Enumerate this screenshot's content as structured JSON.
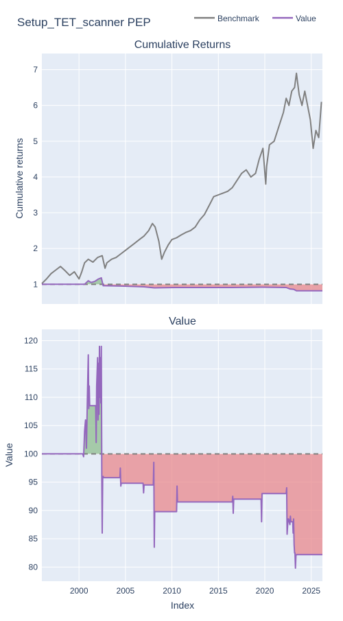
{
  "title": "Setup_TET_scanner PEP",
  "colors": {
    "benchmark": "#7f7f7f",
    "value": "#9467bd",
    "gain_fill": "#8fbf8f",
    "loss_fill": "#e8888c",
    "plot_bg": "#e5ecf6",
    "grid": "#ffffff"
  },
  "legend": {
    "placement": "top-right",
    "items": [
      {
        "label": "Benchmark",
        "color": "#7f7f7f"
      },
      {
        "label": "Value",
        "color": "#9467bd"
      }
    ]
  },
  "chart_data": [
    {
      "type": "line",
      "title": "Cumulative Returns",
      "xlabel": "",
      "ylabel": "Cumulative returns",
      "xlim": [
        1996.0,
        2026.2
      ],
      "ylim": [
        0.45,
        7.45
      ],
      "yticks": [
        1,
        2,
        3,
        4,
        5,
        6,
        7
      ],
      "baseline": 1,
      "grid": true,
      "series": [
        {
          "name": "Benchmark",
          "x": [
            1996.0,
            1996.5,
            1997.0,
            1997.5,
            1998.0,
            1998.5,
            1999.0,
            1999.5,
            2000.0,
            2000.3,
            2000.6,
            2001.0,
            2001.5,
            2002.0,
            2002.5,
            2002.8,
            2003.0,
            2003.5,
            2004.0,
            2004.5,
            2005.0,
            2005.5,
            2006.0,
            2006.5,
            2007.0,
            2007.5,
            2007.9,
            2008.2,
            2008.6,
            2008.9,
            2009.2,
            2009.6,
            2010.0,
            2010.5,
            2011.0,
            2011.5,
            2012.0,
            2012.5,
            2013.0,
            2013.5,
            2014.0,
            2014.5,
            2015.0,
            2015.5,
            2016.0,
            2016.5,
            2017.0,
            2017.5,
            2018.0,
            2018.5,
            2019.0,
            2019.4,
            2019.8,
            2020.1,
            2020.2,
            2020.5,
            2021.0,
            2021.5,
            2022.0,
            2022.3,
            2022.6,
            2022.9,
            2023.2,
            2023.4,
            2023.7,
            2024.0,
            2024.3,
            2024.6,
            2024.9,
            2025.2,
            2025.5,
            2025.8,
            2026.1
          ],
          "values": [
            1.02,
            1.15,
            1.3,
            1.4,
            1.5,
            1.38,
            1.25,
            1.35,
            1.15,
            1.35,
            1.6,
            1.7,
            1.62,
            1.75,
            1.8,
            1.45,
            1.6,
            1.7,
            1.75,
            1.85,
            1.95,
            2.05,
            2.15,
            2.25,
            2.35,
            2.5,
            2.7,
            2.6,
            2.2,
            1.7,
            1.9,
            2.1,
            2.25,
            2.3,
            2.38,
            2.45,
            2.5,
            2.6,
            2.8,
            2.95,
            3.2,
            3.45,
            3.5,
            3.55,
            3.6,
            3.7,
            3.9,
            4.1,
            4.2,
            4.0,
            4.1,
            4.5,
            4.8,
            3.8,
            4.3,
            4.9,
            5.0,
            5.4,
            5.8,
            6.2,
            6.0,
            6.4,
            6.5,
            6.9,
            6.3,
            6.0,
            6.4,
            6.0,
            5.6,
            4.8,
            5.3,
            5.1,
            6.1
          ]
        },
        {
          "name": "Value",
          "x": [
            1996.0,
            2000.6,
            2001.0,
            2001.3,
            2001.7,
            2002.1,
            2002.4,
            2002.6,
            2002.7,
            2004.5,
            2007.0,
            2008.1,
            2010.5,
            2016.5,
            2019.7,
            2022.3,
            2022.7,
            2023.1,
            2023.4,
            2026.2
          ],
          "values": [
            1.0,
            1.0,
            1.1,
            1.05,
            1.08,
            1.15,
            1.18,
            0.96,
            0.96,
            0.95,
            0.93,
            0.9,
            0.91,
            0.91,
            0.92,
            0.91,
            0.87,
            0.86,
            0.82,
            0.82
          ]
        }
      ]
    },
    {
      "type": "line",
      "title": "Value",
      "xlabel": "Index",
      "ylabel": "Value",
      "xlim": [
        1996.0,
        2026.2
      ],
      "ylim": [
        77.5,
        122
      ],
      "yticks": [
        80,
        85,
        90,
        95,
        100,
        105,
        110,
        115,
        120
      ],
      "xticks": [
        2000,
        2005,
        2010,
        2015,
        2020,
        2025
      ],
      "baseline": 100,
      "grid": true,
      "series": [
        {
          "name": "Value",
          "x": [
            1996.0,
            2000.4,
            2000.5,
            2000.6,
            2000.7,
            2000.8,
            2000.9,
            2001.0,
            2001.05,
            2001.1,
            2001.15,
            2001.25,
            2001.3,
            2001.4,
            2001.8,
            2001.85,
            2001.9,
            2002.0,
            2002.05,
            2002.1,
            2002.15,
            2002.2,
            2002.25,
            2002.3,
            2002.35,
            2002.4,
            2002.45,
            2002.5,
            2002.55,
            2002.6,
            2002.65,
            2002.7,
            2004.4,
            2004.45,
            2004.5,
            2004.55,
            2006.9,
            2006.95,
            2007.0,
            2007.05,
            2008.0,
            2008.05,
            2008.1,
            2008.15,
            2008.2,
            2008.25,
            2010.5,
            2010.55,
            2010.6,
            2010.65,
            2016.5,
            2016.55,
            2016.6,
            2016.65,
            2019.6,
            2019.65,
            2019.7,
            2019.75,
            2022.3,
            2022.35,
            2022.4,
            2022.5,
            2022.55,
            2022.7,
            2022.75,
            2022.8,
            2023.0,
            2023.05,
            2023.1,
            2023.15,
            2023.2,
            2023.25,
            2023.3,
            2023.35,
            2023.4,
            2023.5,
            2026.2
          ],
          "values": [
            100,
            100,
            99.5,
            104,
            106,
            101,
            110,
            117.5,
            108,
            112,
            108.5,
            108.5,
            108.5,
            108.5,
            108.5,
            102,
            112,
            117,
            106,
            116,
            107,
            119,
            110,
            117,
            109,
            119,
            96,
            86,
            96,
            96,
            95.8,
            95.8,
            95.8,
            97.5,
            94.3,
            94.8,
            94.8,
            93.1,
            94.5,
            94.5,
            94.5,
            98.5,
            83.5,
            89.8,
            89.8,
            89.8,
            89.8,
            94.3,
            91.5,
            91.5,
            91.5,
            92.5,
            89.5,
            92,
            92,
            88,
            93,
            93,
            93,
            94,
            85.8,
            88.5,
            88.5,
            87.5,
            89,
            88,
            88,
            86,
            88.5,
            84,
            82.5,
            82.5,
            79.8,
            82,
            82.2,
            82.2,
            82.2
          ]
        }
      ]
    }
  ]
}
